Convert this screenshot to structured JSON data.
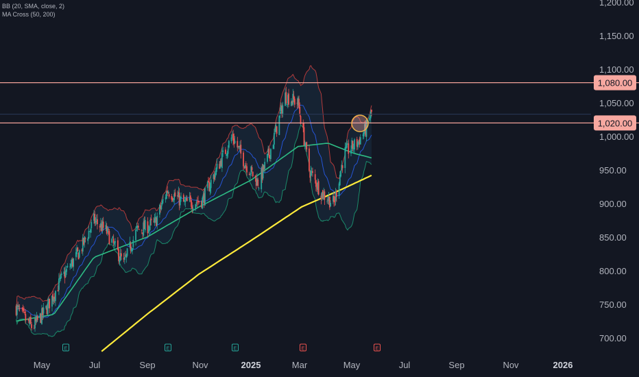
{
  "indicators": {
    "bb_label": "BB (20, SMA, close, 2)",
    "ma_label": "MA Cross (50, 200)"
  },
  "colors": {
    "background": "#131722",
    "up": "#26a69a",
    "down": "#ef5350",
    "bb_fill": "#1e3a52",
    "bb_upper": "#b33a3a",
    "bb_lower": "#1b8a6b",
    "bb_basis": "#2962ff",
    "ma50": "#2ebd85",
    "ma200": "#ffeb3b",
    "level_line": "#f4a39a",
    "tag_bg": "#f7a8a0",
    "tag_text": "#131722",
    "axis_text": "#b2b5be"
  },
  "y_axis": {
    "ticks": [
      "1,200.00",
      "1,150.00",
      "1,100.00",
      "1,050.00",
      "1,000.00",
      "950.00",
      "900.00",
      "850.00",
      "800.00",
      "750.00",
      "700.00"
    ],
    "tick_values": [
      1200,
      1150,
      1100,
      1050,
      1000,
      950,
      900,
      850,
      800,
      750,
      700
    ]
  },
  "x_axis": {
    "ticks": [
      "May",
      "Jul",
      "Sep",
      "Nov",
      "2025",
      "Mar",
      "May",
      "Jul",
      "Sep",
      "Nov",
      "2026"
    ],
    "bold": [
      false,
      false,
      false,
      false,
      true,
      false,
      false,
      false,
      false,
      false,
      true
    ]
  },
  "levels": [
    {
      "value": 1080,
      "label": "1,080.00"
    },
    {
      "value": 1020,
      "label": "1,020.00"
    }
  ],
  "event_markers": [
    {
      "label": "E",
      "type": "earnings",
      "color": "#26a69a"
    },
    {
      "label": "E",
      "type": "earnings",
      "color": "#26a69a"
    },
    {
      "label": "E",
      "type": "earnings",
      "color": "#26a69a"
    },
    {
      "label": "E",
      "type": "earnings",
      "color": "#ef5350"
    },
    {
      "label": "E",
      "type": "earnings",
      "color": "#ef5350"
    }
  ],
  "chart_data": {
    "type": "candlestick",
    "ylim": [
      680,
      1215
    ],
    "x_range": [
      "2024-04-01",
      "2026-02-20"
    ],
    "price_anchors": [
      [
        "2024-04-01",
        745
      ],
      [
        "2024-04-20",
        715
      ],
      [
        "2024-05-05",
        740
      ],
      [
        "2024-05-25",
        790
      ],
      [
        "2024-06-15",
        830
      ],
      [
        "2024-07-01",
        875
      ],
      [
        "2024-07-15",
        860
      ],
      [
        "2024-08-05",
        810
      ],
      [
        "2024-08-20",
        860
      ],
      [
        "2024-09-10",
        870
      ],
      [
        "2024-09-25",
        920
      ],
      [
        "2024-10-15",
        900
      ],
      [
        "2024-11-05",
        905
      ],
      [
        "2024-11-25",
        960
      ],
      [
        "2024-12-10",
        1000
      ],
      [
        "2024-12-25",
        960
      ],
      [
        "2025-01-10",
        930
      ],
      [
        "2025-01-25",
        985
      ],
      [
        "2025-02-10",
        1060
      ],
      [
        "2025-02-25",
        1050
      ],
      [
        "2025-03-10",
        950
      ],
      [
        "2025-03-25",
        915
      ],
      [
        "2025-04-08",
        900
      ],
      [
        "2025-04-20",
        975
      ],
      [
        "2025-05-05",
        990
      ],
      [
        "2025-05-15",
        1010
      ],
      [
        "2025-05-22",
        1035
      ]
    ],
    "ma200_anchors": [
      [
        "2024-07-10",
        680
      ],
      [
        "2024-09-01",
        735
      ],
      [
        "2024-11-01",
        795
      ],
      [
        "2025-01-01",
        845
      ],
      [
        "2025-03-01",
        895
      ],
      [
        "2025-04-15",
        920
      ],
      [
        "2025-05-22",
        942
      ]
    ],
    "ma50_anchors": [
      [
        "2024-04-01",
        725
      ],
      [
        "2024-05-15",
        735
      ],
      [
        "2024-07-01",
        820
      ],
      [
        "2024-09-01",
        850
      ],
      [
        "2024-11-01",
        895
      ],
      [
        "2025-01-01",
        935
      ],
      [
        "2025-02-25",
        985
      ],
      [
        "2025-04-01",
        990
      ],
      [
        "2025-05-01",
        975
      ],
      [
        "2025-05-22",
        968
      ]
    ],
    "levels": [
      1080,
      1020
    ],
    "current_price": 1033
  }
}
